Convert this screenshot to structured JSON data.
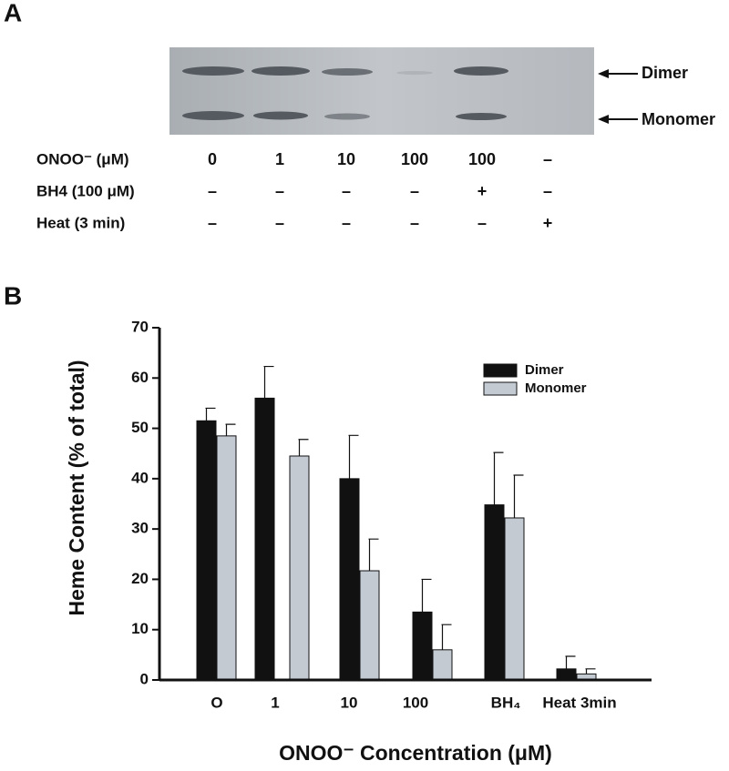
{
  "panel_a": {
    "label": "A",
    "bands": [
      "Dimer",
      "Monomer"
    ],
    "rows": [
      {
        "label": "ONOO⁻ (μM)",
        "cells": [
          "0",
          "1",
          "10",
          "100",
          "100",
          "–"
        ]
      },
      {
        "label": "BH4 (100 μM)",
        "cells": [
          "–",
          "–",
          "–",
          "–",
          "+",
          "–"
        ]
      },
      {
        "label": "Heat (3 min)",
        "cells": [
          "–",
          "–",
          "–",
          "–",
          "–",
          "+"
        ]
      }
    ]
  },
  "chart_data": {
    "type": "bar",
    "panel_label": "B",
    "categories": [
      "O",
      "1",
      "10",
      "100",
      "BH₄",
      "Heat 3min"
    ],
    "series": [
      {
        "name": "Dimer",
        "color": "#111111",
        "values": [
          51.5,
          56,
          40,
          13.5,
          34.8,
          2.2
        ],
        "errors": [
          2.5,
          6.3,
          8.6,
          6.5,
          10.4,
          2.5
        ]
      },
      {
        "name": "Monomer",
        "color": "#c3cad2",
        "values": [
          48.5,
          44.5,
          21.7,
          6,
          32.2,
          1.2
        ],
        "errors": [
          2.3,
          3.3,
          6.3,
          5,
          8.5,
          1.0
        ]
      }
    ],
    "ylim": [
      0,
      70
    ],
    "yticks": [
      0,
      10,
      20,
      30,
      40,
      50,
      60,
      70
    ],
    "y_label": "Heme Content (% of total)",
    "x_label": "ONOO⁻ Concentration (μM)"
  }
}
